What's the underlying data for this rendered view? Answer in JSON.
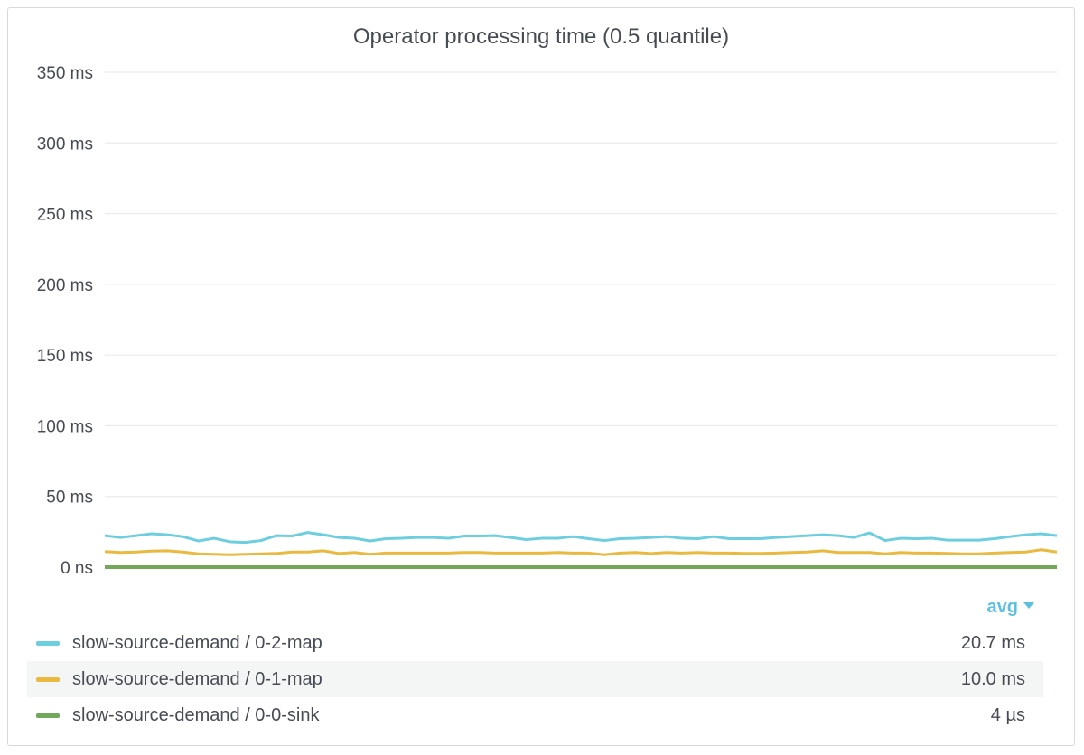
{
  "panel": {
    "title": "Operator processing time (0.5 quantile)"
  },
  "legend": {
    "header": "avg",
    "items": [
      {
        "name": "slow-source-demand / 0-2-map",
        "value": "20.7 ms",
        "color": "#6ccede"
      },
      {
        "name": "slow-source-demand / 0-1-map",
        "value": "10.0 ms",
        "color": "#e9b940"
      },
      {
        "name": "slow-source-demand / 0-0-sink",
        "value": "4 µs",
        "color": "#73a759"
      }
    ]
  },
  "chart_data": {
    "type": "line",
    "title": "Operator processing time (0.5 quantile)",
    "ylim": [
      0,
      350
    ],
    "yunit": "ms",
    "y_ticks": [
      {
        "value": 350,
        "label": "350 ms"
      },
      {
        "value": 300,
        "label": "300 ms"
      },
      {
        "value": 250,
        "label": "250 ms"
      },
      {
        "value": 200,
        "label": "200 ms"
      },
      {
        "value": 150,
        "label": "150 ms"
      },
      {
        "value": 100,
        "label": "100 ms"
      },
      {
        "value": 50,
        "label": "50 ms"
      },
      {
        "value": 0,
        "label": "0 ns"
      }
    ],
    "grid": true,
    "legend_position": "bottom",
    "series": [
      {
        "name": "slow-source-demand / 0-2-map",
        "color": "#6ccede",
        "values": [
          22.3,
          21.0,
          22.3,
          23.6,
          22.9,
          21.6,
          18.5,
          20.4,
          18.0,
          17.5,
          18.8,
          22.3,
          22.0,
          24.5,
          22.9,
          21.0,
          20.4,
          18.5,
          20.1,
          20.4,
          21.0,
          21.0,
          20.4,
          22.0,
          22.0,
          22.3,
          21.0,
          19.5,
          20.4,
          20.4,
          21.6,
          20.1,
          18.8,
          20.1,
          20.4,
          21.0,
          21.6,
          20.4,
          20.1,
          21.6,
          20.1,
          20.1,
          20.1,
          21.0,
          21.6,
          22.3,
          22.9,
          22.3,
          21.0,
          24.2,
          18.8,
          20.4,
          20.1,
          20.4,
          19.1,
          19.1,
          19.1,
          20.1,
          21.6,
          22.9,
          23.6,
          22.3
        ]
      },
      {
        "name": "slow-source-demand / 0-1-map",
        "color": "#e9b940",
        "values": [
          11.0,
          10.4,
          10.7,
          11.3,
          11.6,
          10.7,
          9.4,
          9.1,
          8.8,
          9.1,
          9.4,
          9.7,
          10.7,
          10.7,
          11.6,
          9.7,
          10.4,
          9.1,
          10.0,
          10.0,
          10.0,
          10.0,
          10.0,
          10.4,
          10.4,
          10.0,
          10.0,
          10.0,
          10.0,
          10.4,
          10.0,
          10.0,
          8.8,
          10.0,
          10.4,
          9.7,
          10.4,
          10.0,
          10.4,
          10.0,
          10.0,
          9.7,
          9.7,
          10.0,
          10.4,
          10.7,
          11.6,
          10.4,
          10.4,
          10.4,
          9.4,
          10.4,
          10.0,
          10.0,
          9.7,
          9.4,
          9.4,
          10.0,
          10.4,
          10.7,
          12.3,
          10.7
        ]
      },
      {
        "name": "slow-source-demand / 0-0-sink",
        "color": "#73a759",
        "values": [
          0.004,
          0.004,
          0.004,
          0.004,
          0.004,
          0.004,
          0.004,
          0.004,
          0.004,
          0.004,
          0.004,
          0.004,
          0.004,
          0.004,
          0.004,
          0.004,
          0.004,
          0.004,
          0.004,
          0.004,
          0.004,
          0.004,
          0.004,
          0.004,
          0.004,
          0.004,
          0.004,
          0.004,
          0.004,
          0.004,
          0.004,
          0.004,
          0.004,
          0.004,
          0.004,
          0.004,
          0.004,
          0.004,
          0.004,
          0.004,
          0.004,
          0.004,
          0.004,
          0.004,
          0.004,
          0.004,
          0.004,
          0.004,
          0.004,
          0.004,
          0.004,
          0.004,
          0.004,
          0.004,
          0.004,
          0.004,
          0.004,
          0.004,
          0.004,
          0.004,
          0.004,
          0.004
        ]
      }
    ]
  }
}
